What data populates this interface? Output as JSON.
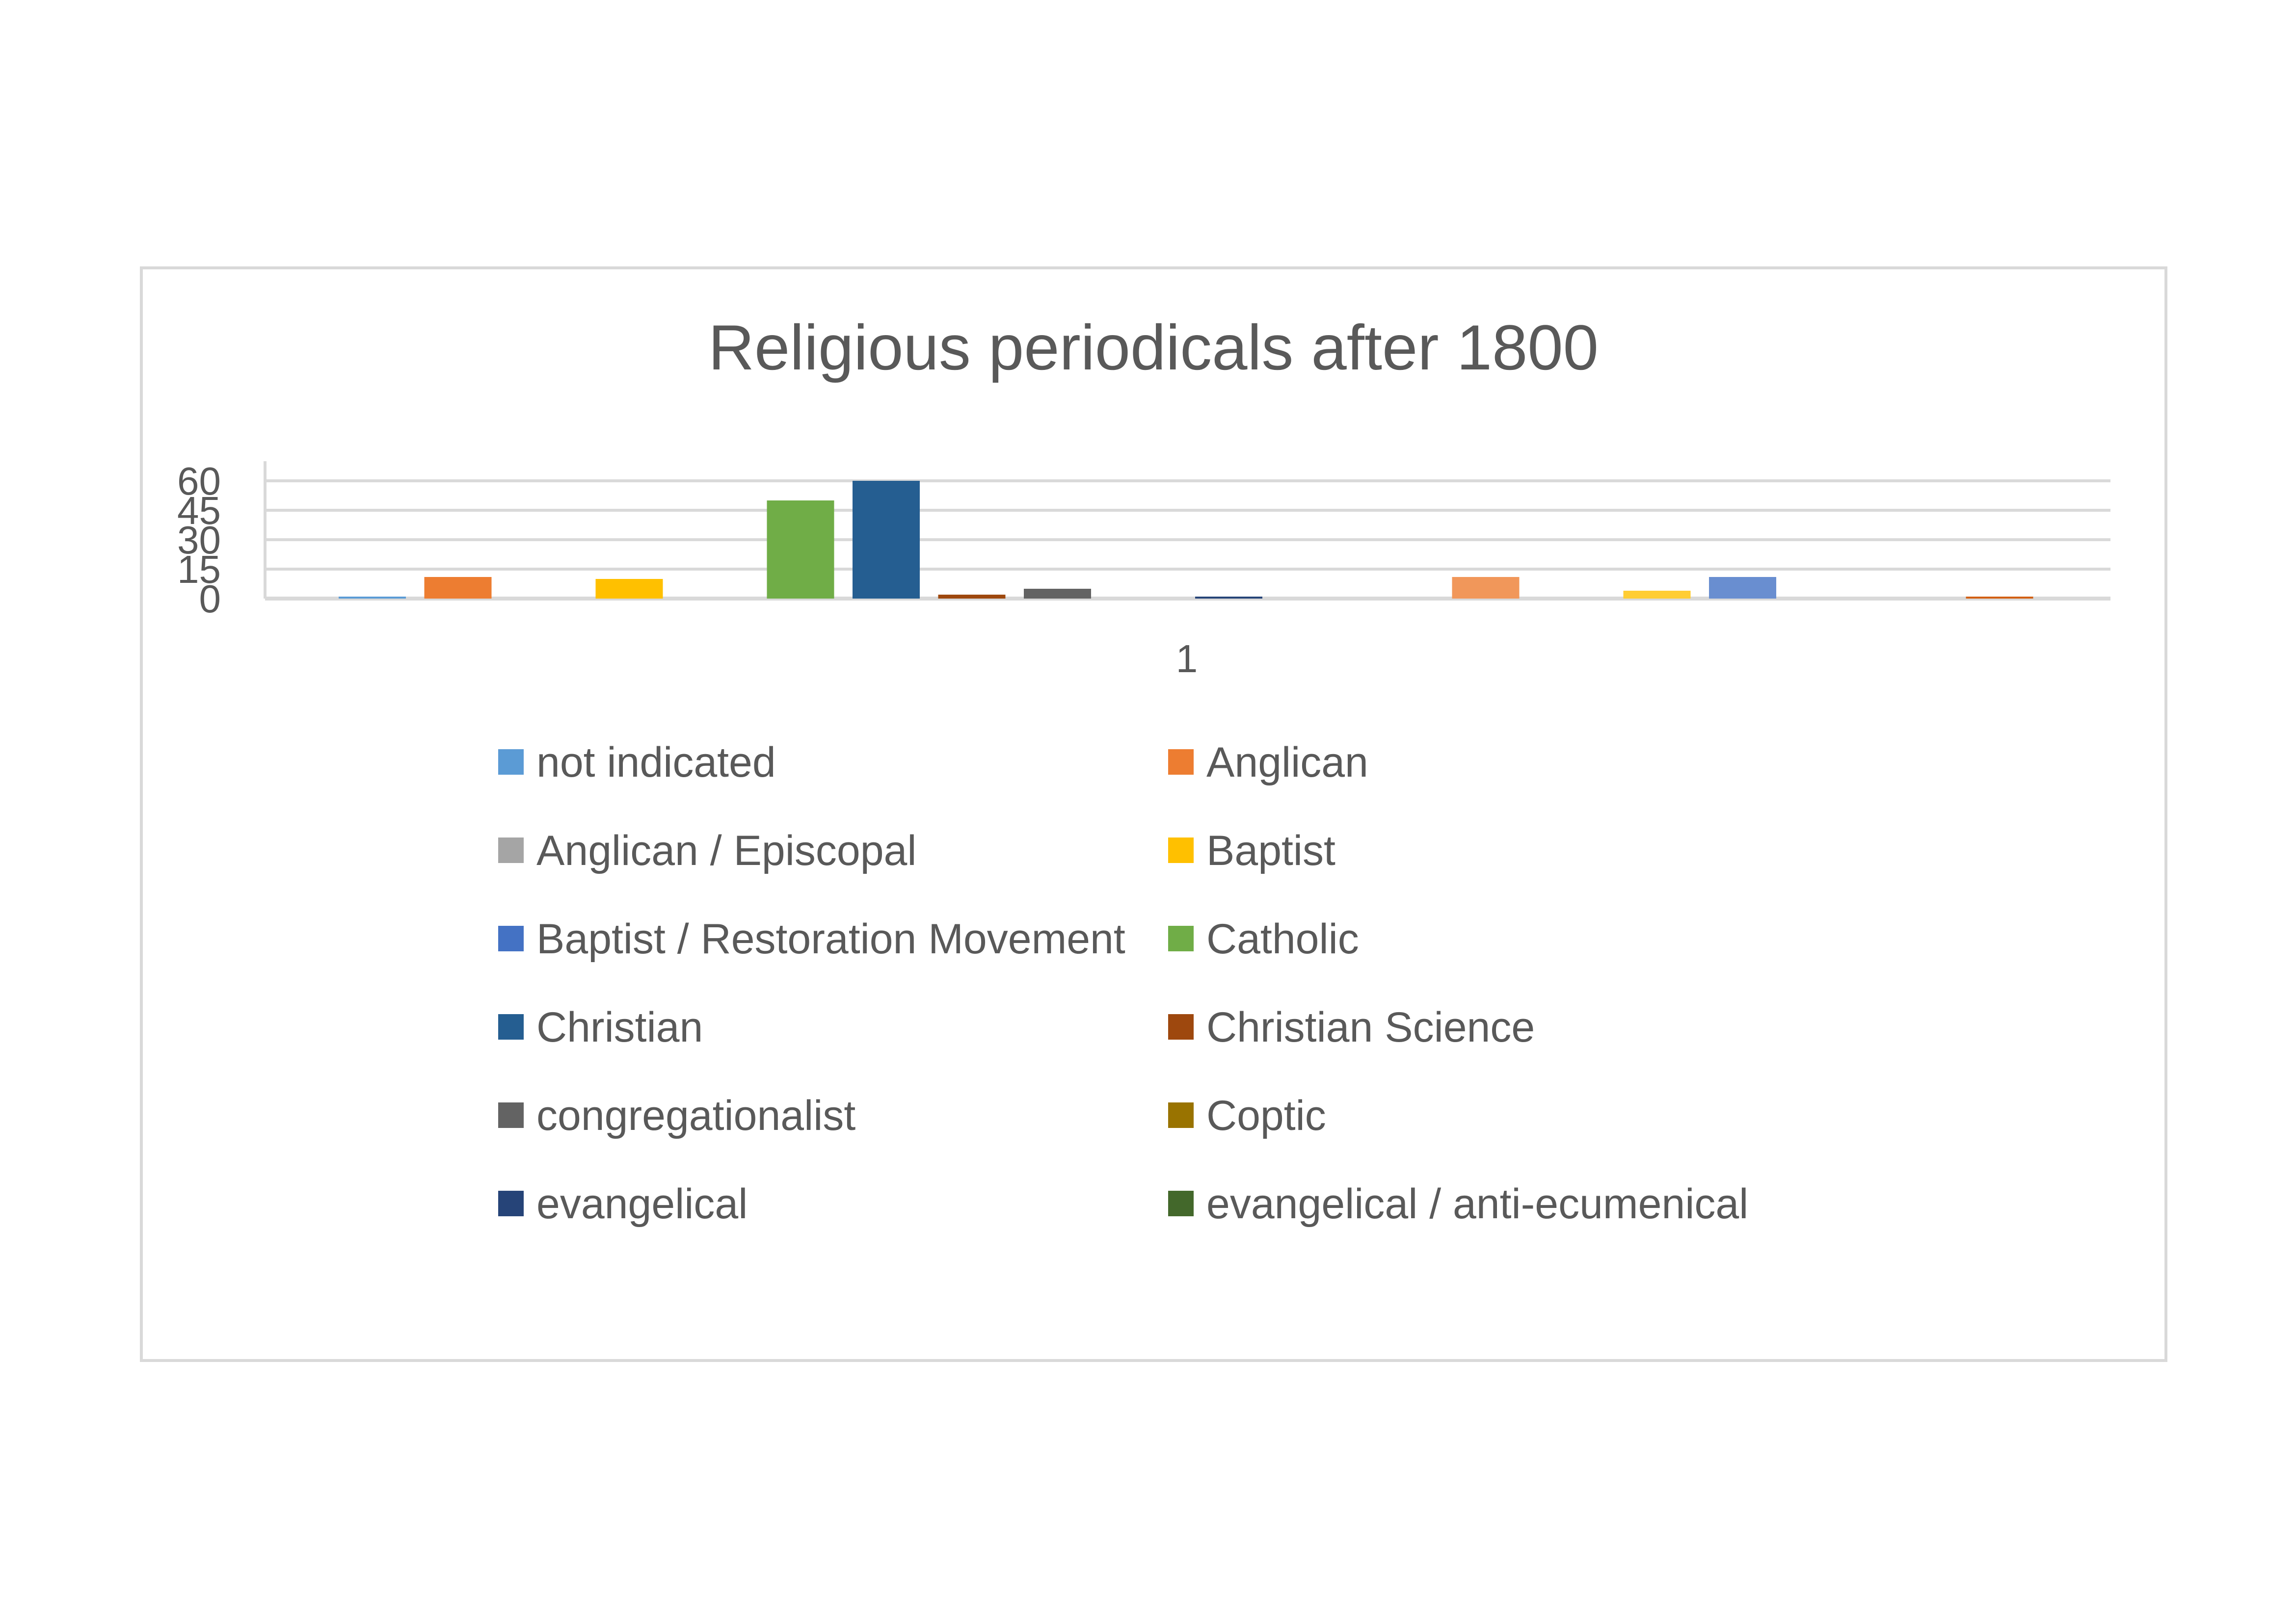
{
  "chart_data": {
    "type": "bar",
    "title": "Religious periodicals after 1800",
    "xlabel": "",
    "ylabel": "",
    "categories": [
      "1"
    ],
    "y_ticks": [
      "0",
      "15",
      "30",
      "45",
      "60"
    ],
    "ylim": [
      0,
      60
    ],
    "grid": true,
    "legend_position": "bottom",
    "series": [
      {
        "name": "not indicated",
        "values": [
          1
        ],
        "color": "#5b9bd5",
        "in_legend": true
      },
      {
        "name": "Anglican",
        "values": [
          11
        ],
        "color": "#ed7d31",
        "in_legend": true
      },
      {
        "name": "Anglican / Episcopal",
        "values": [
          0
        ],
        "color": "#a5a5a5",
        "in_legend": true
      },
      {
        "name": "Baptist",
        "values": [
          10
        ],
        "color": "#ffc000",
        "in_legend": true
      },
      {
        "name": "Baptist / Restoration Movement",
        "values": [
          0
        ],
        "color": "#4472c4",
        "in_legend": true
      },
      {
        "name": "Catholic",
        "values": [
          50
        ],
        "color": "#70ad47",
        "in_legend": true
      },
      {
        "name": "Christian",
        "values": [
          60
        ],
        "color": "#255e91",
        "in_legend": true
      },
      {
        "name": "Christian Science",
        "values": [
          2
        ],
        "color": "#9e480e",
        "in_legend": true
      },
      {
        "name": "congregationalist",
        "values": [
          5
        ],
        "color": "#636363",
        "in_legend": true
      },
      {
        "name": "Coptic",
        "values": [
          0
        ],
        "color": "#997300",
        "in_legend": true
      },
      {
        "name": "evangelical",
        "values": [
          1
        ],
        "color": "#264478",
        "in_legend": true
      },
      {
        "name": "evangelical / anti-ecumenical",
        "values": [
          0
        ],
        "color": "#43682b",
        "in_legend": true
      },
      {
        "name": "",
        "values": [
          0
        ],
        "color": "#7cafdd",
        "in_legend": false
      },
      {
        "name": "",
        "values": [
          11
        ],
        "color": "#f1975a",
        "in_legend": false
      },
      {
        "name": "",
        "values": [
          0
        ],
        "color": "#b7b7b7",
        "in_legend": false
      },
      {
        "name": "",
        "values": [
          4
        ],
        "color": "#ffcd33",
        "in_legend": false
      },
      {
        "name": "",
        "values": [
          11
        ],
        "color": "#698ed0",
        "in_legend": false
      },
      {
        "name": "",
        "values": [
          0
        ],
        "color": "#8cc168",
        "in_legend": false
      },
      {
        "name": "",
        "values": [
          0
        ],
        "color": "#327dc2",
        "in_legend": false
      },
      {
        "name": "",
        "values": [
          1
        ],
        "color": "#d26012",
        "in_legend": false
      }
    ]
  }
}
